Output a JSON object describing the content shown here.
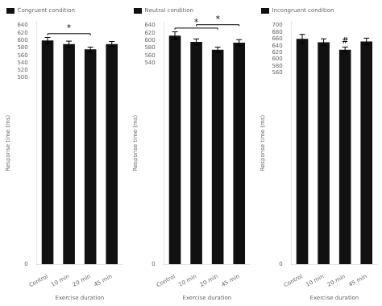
{
  "chart_data": [
    {
      "type": "bar",
      "categories": [
        "Control",
        "10 min",
        "20 min",
        "45 min"
      ],
      "series": [
        {
          "name": "Congruent condition",
          "color": "#111111",
          "values": [
            600,
            590,
            576,
            590
          ],
          "errors": [
            8,
            8,
            6,
            7
          ]
        }
      ],
      "ylim": [
        0,
        650
      ],
      "yticks": [
        0,
        500,
        520,
        540,
        560,
        580,
        600,
        620,
        640
      ],
      "ylabel": "Response time (ms)",
      "xlabel": "Exercise duration",
      "grid": false,
      "legend": "upper left",
      "annotations": [
        {
          "x": [
            0,
            2
          ],
          "y": 618,
          "cap": 4,
          "text": "*"
        }
      ]
    },
    {
      "type": "bar",
      "categories": [
        "Control",
        "10 min",
        "20 min",
        "45 min"
      ],
      "series": [
        {
          "name": "Neutral condition",
          "color": "#111111",
          "values": [
            613,
            596,
            575,
            594
          ],
          "errors": [
            10,
            8,
            7,
            8
          ]
        }
      ],
      "ylim": [
        0,
        650
      ],
      "yticks": [
        0,
        540,
        560,
        580,
        600,
        620,
        640
      ],
      "ylabel": "Response time (ms)",
      "xlabel": "Exercise duration",
      "grid": false,
      "legend": "upper left",
      "annotations": [
        {
          "x": [
            0,
            2
          ],
          "y": 633,
          "cap": 4,
          "text": "*"
        },
        {
          "x": [
            1,
            3
          ],
          "y": 642,
          "cap": 4,
          "text": "*"
        }
      ]
    },
    {
      "type": "bar",
      "categories": [
        "Control",
        "10 min",
        "20 min",
        "45 min"
      ],
      "series": [
        {
          "name": "Incongruent condition",
          "color": "#111111",
          "values": [
            660,
            650,
            628,
            652
          ],
          "errors": [
            13,
            10,
            8,
            10
          ]
        }
      ],
      "ylim": [
        0,
        710
      ],
      "yticks": [
        0,
        560,
        580,
        600,
        620,
        640,
        660,
        680,
        700
      ],
      "ylabel": "Response time (ms)",
      "xlabel": "Exercise duration",
      "grid": false,
      "legend": "upper left",
      "annotations": [
        {
          "x": 2,
          "y": 640,
          "text": "#"
        }
      ]
    }
  ]
}
